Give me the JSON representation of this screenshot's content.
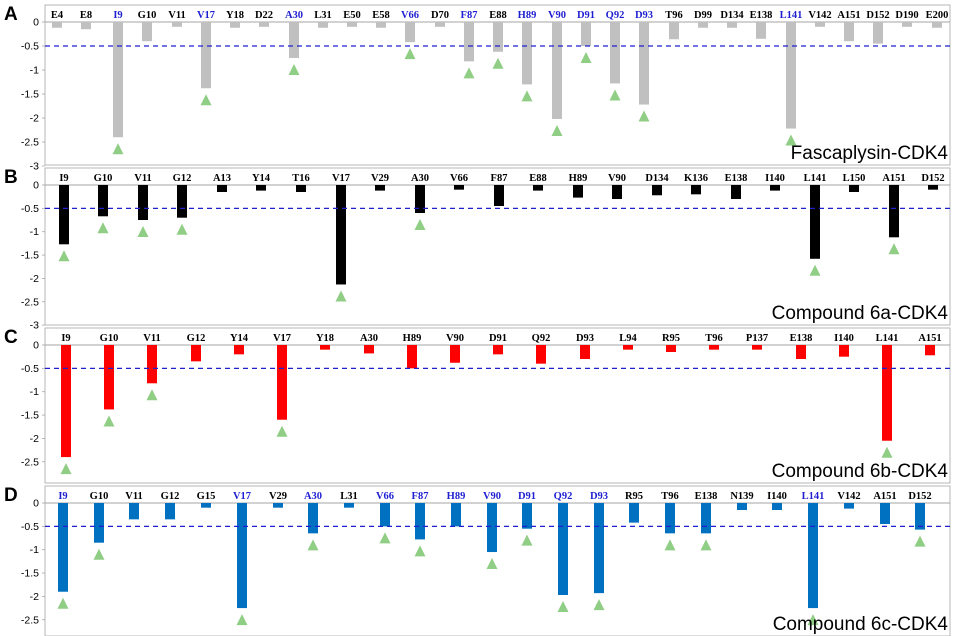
{
  "colors": {
    "highlight_label": "#1f1fd2",
    "normal_label": "#000000",
    "threshold_line": "#1f1fd2",
    "triangle": "#8fce84",
    "axis": "#a6a6a6"
  },
  "chart_data": [
    {
      "type": "bar",
      "panel": "A",
      "title": "Fascaplysin-CDK4",
      "color": "#c0c0c0",
      "ylim": [
        -3,
        0
      ],
      "yticks": [
        "0",
        "-0.5",
        "-1",
        "-1.5",
        "-2",
        "-2.5",
        "-3"
      ],
      "threshold": -0.5,
      "categories": [
        "E4",
        "E8",
        "I9",
        "G10",
        "V11",
        "V17",
        "Y18",
        "D22",
        "A30",
        "L31",
        "E50",
        "E58",
        "V66",
        "D70",
        "F87",
        "E88",
        "H89",
        "V90",
        "D91",
        "Q92",
        "D93",
        "T96",
        "D99",
        "D134",
        "E138",
        "L141",
        "V142",
        "A151",
        "D152",
        "D190",
        "E200"
      ],
      "values": [
        -0.12,
        -0.15,
        -2.4,
        -0.4,
        -0.1,
        -1.38,
        -0.12,
        -0.1,
        -0.75,
        -0.12,
        -0.1,
        -0.12,
        -0.42,
        -0.1,
        -0.82,
        -0.62,
        -1.3,
        -2.02,
        -0.5,
        -1.28,
        -1.72,
        -0.36,
        -0.12,
        -0.12,
        -0.35,
        -2.22,
        -0.1,
        -0.4,
        -0.45,
        -0.1,
        -0.12
      ],
      "highlighted": [
        "I9",
        "V17",
        "A30",
        "V66",
        "F87",
        "H89",
        "V90",
        "D91",
        "Q92",
        "D93",
        "L141"
      ],
      "marked": [
        "I9",
        "V17",
        "A30",
        "V66",
        "F87",
        "E88",
        "H89",
        "V90",
        "D91",
        "Q92",
        "D93",
        "L141"
      ]
    },
    {
      "type": "bar",
      "panel": "B",
      "title": "Compound 6a-CDK4",
      "color": "#000000",
      "ylim": [
        -3,
        0
      ],
      "yticks": [
        "0",
        "-0.5",
        "-1",
        "-1.5",
        "-2",
        "-2.5",
        "-3"
      ],
      "threshold": -0.5,
      "categories": [
        "I9",
        "G10",
        "V11",
        "G12",
        "A13",
        "Y14",
        "T16",
        "V17",
        "V29",
        "A30",
        "V66",
        "F87",
        "E88",
        "H89",
        "V90",
        "D134",
        "K136",
        "E138",
        "I140",
        "L141",
        "L150",
        "A151",
        "D152"
      ],
      "values": [
        -1.27,
        -0.67,
        -0.75,
        -0.7,
        -0.15,
        -0.12,
        -0.15,
        -2.13,
        -0.12,
        -0.6,
        -0.1,
        -0.45,
        -0.12,
        -0.27,
        -0.3,
        -0.22,
        -0.2,
        -0.3,
        -0.12,
        -1.58,
        -0.15,
        -1.12,
        -0.1
      ],
      "highlighted": [],
      "marked": [
        "I9",
        "G10",
        "V11",
        "G12",
        "A30",
        "L141",
        "A151",
        "V17"
      ]
    },
    {
      "type": "bar",
      "panel": "C",
      "title": "Compound 6b-CDK4",
      "color": "#ff0000",
      "ylim": [
        -3,
        0
      ],
      "yticks": [
        "0",
        "-0.5",
        "-1",
        "-1.5",
        "-2",
        "-2.5",
        "-3"
      ],
      "threshold": -0.5,
      "categories": [
        "I9",
        "G10",
        "V11",
        "G12",
        "Y14",
        "V17",
        "Y18",
        "A30",
        "H89",
        "V90",
        "D91",
        "Q92",
        "D93",
        "L94",
        "R95",
        "T96",
        "P137",
        "E138",
        "I140",
        "L141",
        "A151"
      ],
      "values": [
        -2.4,
        -1.38,
        -0.82,
        -0.35,
        -0.2,
        -1.6,
        -0.1,
        -0.18,
        -0.5,
        -0.38,
        -0.2,
        -0.4,
        -0.3,
        -0.1,
        -0.15,
        -0.1,
        -0.1,
        -0.3,
        -0.25,
        -2.05,
        -0.22
      ],
      "highlighted": [],
      "marked": [
        "I9",
        "G10",
        "V11",
        "V17",
        "L141"
      ]
    },
    {
      "type": "bar",
      "panel": "D",
      "title": "Compound 6c-CDK4",
      "color": "#0070c0",
      "ylim": [
        -3,
        0
      ],
      "yticks": [
        "0",
        "-0.5",
        "-1",
        "-1.5",
        "-2",
        "-2.5",
        "-3"
      ],
      "threshold": -0.5,
      "categories": [
        "I9",
        "G10",
        "V11",
        "G12",
        "G15",
        "V17",
        "V29",
        "A30",
        "L31",
        "V66",
        "F87",
        "H89",
        "V90",
        "D91",
        "Q92",
        "D93",
        "R95",
        "T96",
        "E138",
        "N139",
        "I140",
        "L141",
        "V142",
        "A151",
        "D152"
      ],
      "values": [
        -1.9,
        -0.85,
        -0.35,
        -0.35,
        -0.1,
        -2.25,
        -0.1,
        -0.65,
        -0.1,
        -0.5,
        -0.78,
        -0.5,
        -1.05,
        -0.55,
        -1.97,
        -1.93,
        -0.42,
        -0.65,
        -0.65,
        -0.15,
        -0.15,
        -2.25,
        -0.12,
        -0.45,
        -0.57
      ],
      "highlighted": [
        "I9",
        "V17",
        "A30",
        "V66",
        "F87",
        "H89",
        "V90",
        "D91",
        "Q92",
        "D93",
        "L141"
      ],
      "marked": [
        "I9",
        "G10",
        "V17",
        "A30",
        "V66",
        "F87",
        "V90",
        "D91",
        "Q92",
        "D93",
        "T96",
        "E138",
        "L141",
        "D152"
      ]
    }
  ]
}
